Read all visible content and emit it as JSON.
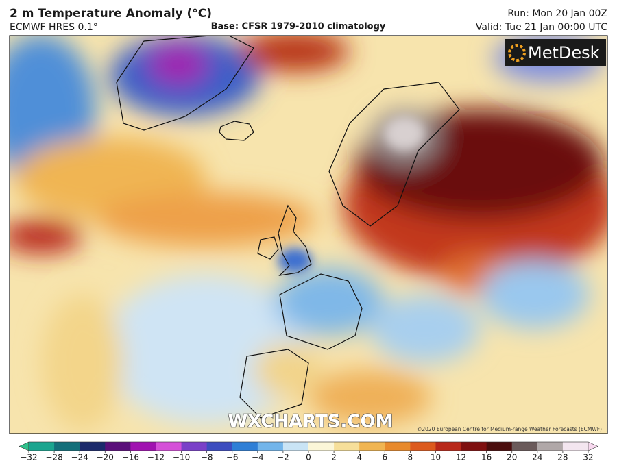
{
  "header": {
    "title": "2 m Temperature Anomaly (°C)",
    "model": "ECMWF HRES 0.1°",
    "base": "Base: CFSR 1979-2010 climatology",
    "run": "Run: Mon 20 Jan 00Z",
    "valid": "Valid: Tue 21 Jan 00:00 UTC"
  },
  "map": {
    "logo": "MetDesk",
    "watermark": "WXCHARTS.COM",
    "copyright": "©2020 European Centre for Medium-range Weather Forecasts (ECMWF)"
  },
  "colorbar": {
    "ticks": [
      {
        "value": -32,
        "label": "−32"
      },
      {
        "value": -28,
        "label": "−28"
      },
      {
        "value": -24,
        "label": "−24"
      },
      {
        "value": -20,
        "label": "−20"
      },
      {
        "value": -16,
        "label": "−16"
      },
      {
        "value": -12,
        "label": "−12"
      },
      {
        "value": -10,
        "label": "−10"
      },
      {
        "value": -8,
        "label": "−8"
      },
      {
        "value": -6,
        "label": "−6"
      },
      {
        "value": -4,
        "label": "−4"
      },
      {
        "value": -2,
        "label": "−2"
      },
      0,
      2,
      4,
      6,
      8,
      10,
      12,
      16,
      20,
      24,
      28,
      32
    ],
    "colors": [
      "#1aa58f",
      "#136f7a",
      "#1b2a6b",
      "#5a0f7a",
      "#a012b0",
      "#d550d8",
      "#7a40c8",
      "#3d4dbf",
      "#2f7fd6",
      "#73b5ea",
      "#c9e4f5",
      "#fbf6d8",
      "#f6df9a",
      "#f0b552",
      "#e88a2d",
      "#dc5a1e",
      "#b8281a",
      "#7f1010",
      "#4a0d0d",
      "#6a5a5a",
      "#b0a8a8",
      "#f3e6ef"
    ],
    "under_color": "#2fc08a",
    "over_color": "#f7d8ee"
  }
}
